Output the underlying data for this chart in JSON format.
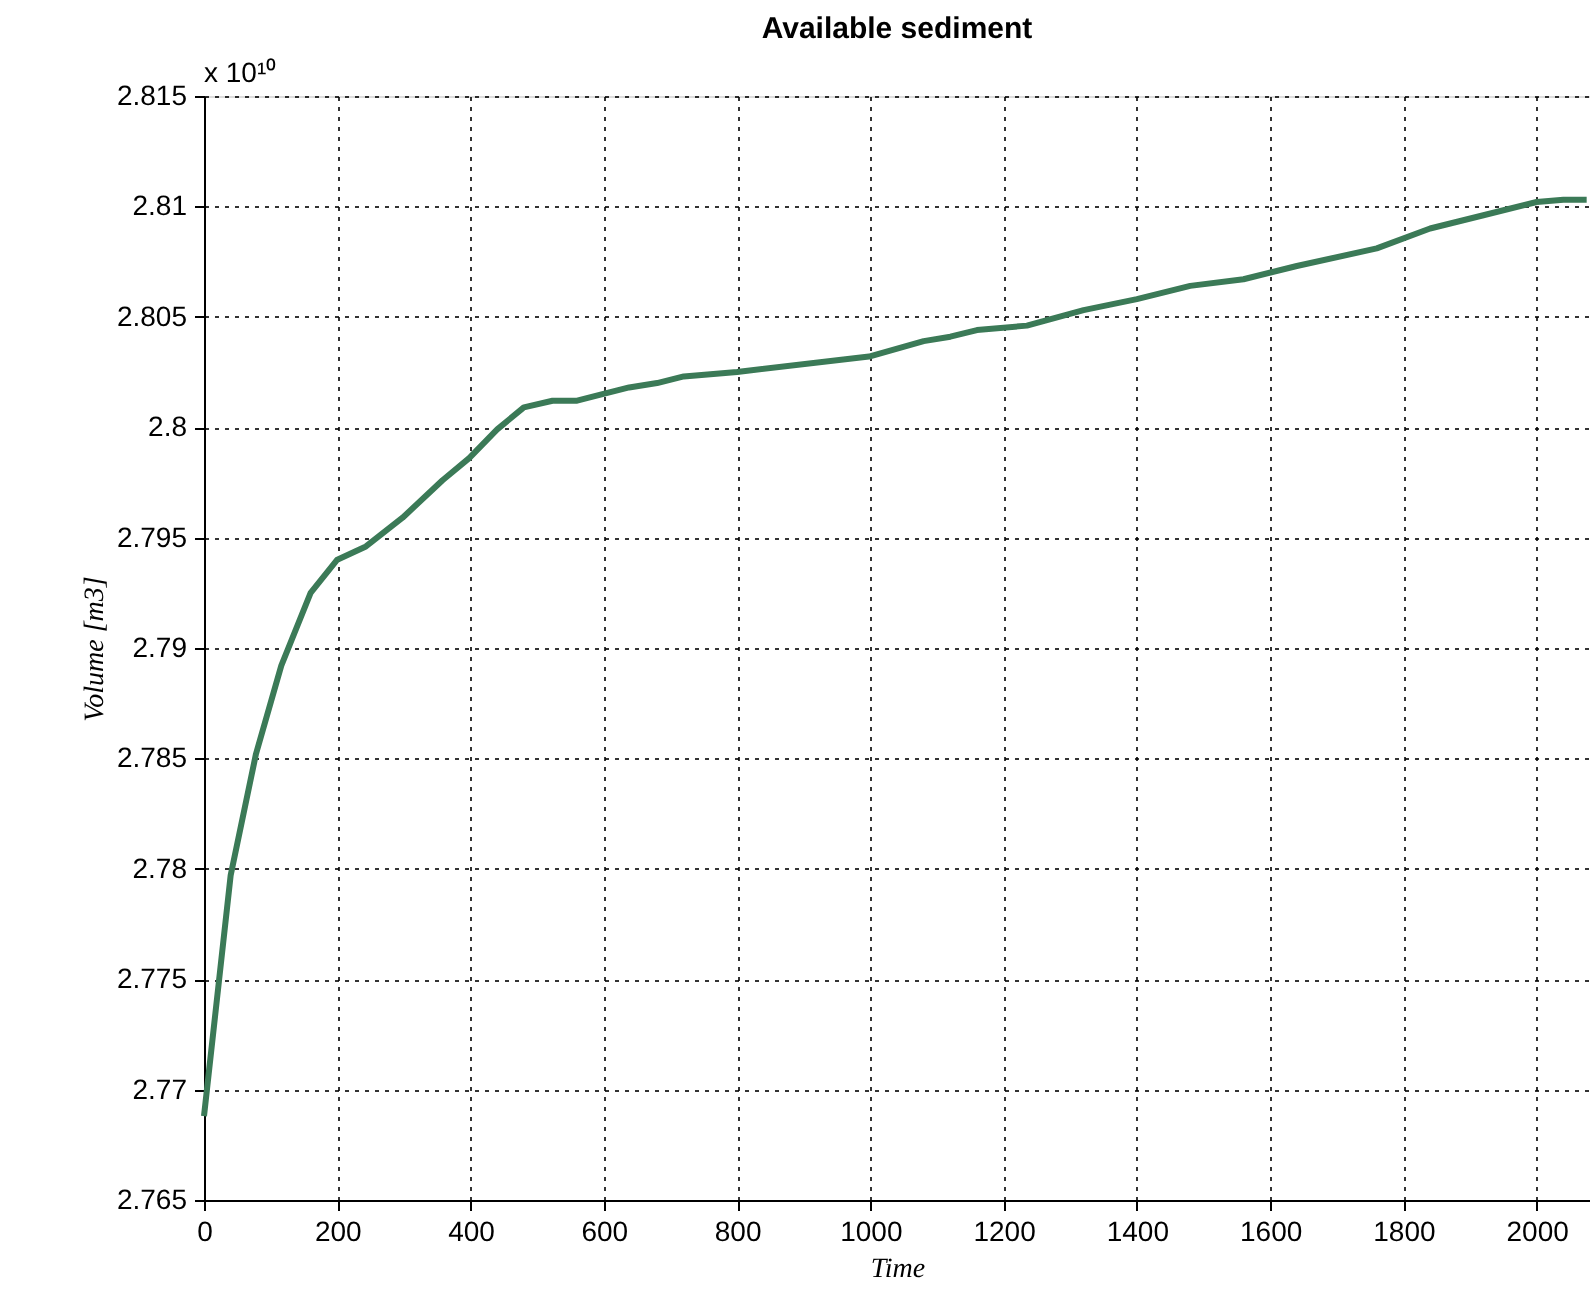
{
  "chart_data": {
    "type": "line",
    "title": "Available sediment",
    "xlabel": "Time",
    "ylabel": "Volume [m3]",
    "annotations": [
      "x 10¹⁰"
    ],
    "x": [
      0,
      40,
      78,
      116,
      160,
      200,
      243,
      298,
      358,
      398,
      440,
      480,
      523,
      560,
      598,
      638,
      680,
      720,
      800,
      998,
      1080,
      1120,
      1160,
      1235,
      1320,
      1400,
      1480,
      1560,
      1640,
      1760,
      1840,
      1920,
      2000,
      2040,
      2075
    ],
    "series": [
      {
        "color": "#3b7a57",
        "values": [
          2.7688,
          2.7797,
          2.7852,
          2.7892,
          2.7925,
          2.794,
          2.7946,
          2.7959,
          2.7976,
          2.7986,
          2.7999,
          2.8009,
          2.8012,
          2.8012,
          2.8015,
          2.8018,
          2.802,
          2.8023,
          2.8025,
          2.8032,
          2.8039,
          2.8041,
          2.8044,
          2.8046,
          2.8053,
          2.8058,
          2.8064,
          2.8067,
          2.8073,
          2.8081,
          2.809,
          2.8096,
          2.8102,
          2.8103,
          2.8103
        ]
      }
    ],
    "xlim": [
      0,
      2080
    ],
    "xticks": [
      0,
      200,
      400,
      600,
      800,
      1000,
      1200,
      1400,
      1600,
      1800,
      2000
    ],
    "ylim": [
      2.765,
      2.815
    ],
    "yticks": [
      2.765,
      2.77,
      2.775,
      2.78,
      2.785,
      2.79,
      2.795,
      2.8,
      2.805,
      2.81,
      2.815
    ],
    "grid": true,
    "line_style": "solid",
    "marker": "none"
  }
}
